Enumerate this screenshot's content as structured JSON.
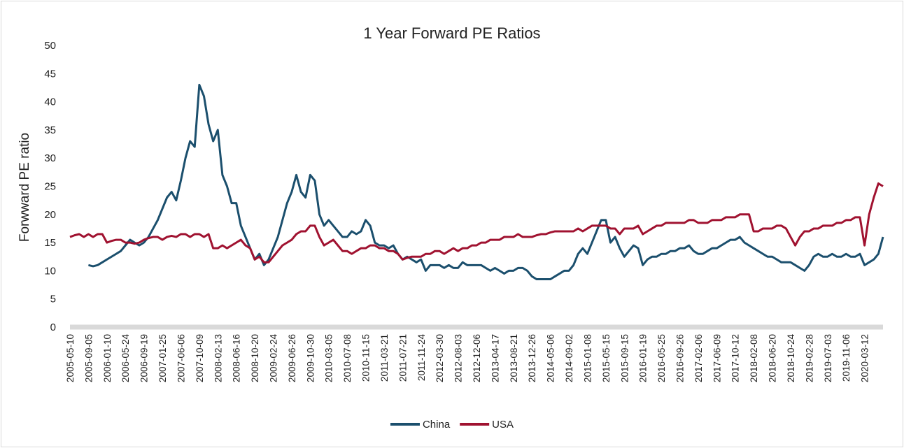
{
  "chart_data": {
    "type": "line",
    "title": "1 Year Forward PE Ratios",
    "y_label": "Forwward PE ratio",
    "categories": [
      "2005-05-10",
      null,
      null,
      null,
      "2005-09-05",
      null,
      null,
      null,
      "2006-01-10",
      null,
      null,
      null,
      "2006-05-24",
      null,
      null,
      null,
      "2006-09-19",
      null,
      null,
      null,
      "2007-01-25",
      null,
      null,
      null,
      "2007-06-06",
      null,
      null,
      null,
      "2007-10-09",
      null,
      null,
      null,
      "2008-02-13",
      null,
      null,
      null,
      "2008-06-16",
      null,
      null,
      null,
      "2008-10-20",
      null,
      null,
      null,
      "2009-02-24",
      null,
      null,
      null,
      "2009-06-26",
      null,
      null,
      null,
      "2009-10-30",
      null,
      null,
      null,
      "2010-03-05",
      null,
      null,
      null,
      "2010-07-08",
      null,
      null,
      null,
      "2010-11-15",
      null,
      null,
      null,
      "2011-03-21",
      null,
      null,
      null,
      "2011-07-21",
      null,
      null,
      null,
      "2011-11-24",
      null,
      null,
      null,
      "2012-03-30",
      null,
      null,
      null,
      "2012-08-03",
      null,
      null,
      null,
      "2012-12-06",
      null,
      null,
      null,
      "2013-04-17",
      null,
      null,
      null,
      "2013-08-21",
      null,
      null,
      null,
      "2013-12-26",
      null,
      null,
      null,
      "2014-05-06",
      null,
      null,
      null,
      "2014-09-02",
      null,
      null,
      null,
      "2015-01-08",
      null,
      null,
      null,
      "2015-05-15",
      null,
      null,
      null,
      "2015-09-15",
      null,
      null,
      null,
      "2016-01-19",
      null,
      null,
      null,
      "2016-05-25",
      null,
      null,
      null,
      "2016-09-26",
      null,
      null,
      null,
      "2017-02-06",
      null,
      null,
      null,
      "2017-06-09",
      null,
      null,
      null,
      "2017-10-12",
      null,
      null,
      null,
      "2018-02-08",
      null,
      null,
      null,
      "2018-06-20",
      null,
      null,
      null,
      "2018-10-24",
      null,
      null,
      null,
      "2019-02-28",
      null,
      null,
      null,
      "2019-07-03",
      null,
      null,
      null,
      "2019-11-06",
      null,
      null,
      null,
      "2020-03-12",
      null,
      null,
      null,
      null
    ],
    "series": [
      {
        "name": "China",
        "color": "#1b4f6d",
        "values": [
          null,
          null,
          null,
          null,
          11,
          10.8,
          11,
          11.5,
          12,
          12.5,
          13,
          13.5,
          14.5,
          15.5,
          15,
          14.5,
          15,
          16,
          17.5,
          19,
          21,
          23,
          24,
          22.5,
          26,
          30,
          33,
          32,
          43,
          41,
          36,
          33,
          35,
          27,
          25,
          22,
          22,
          18,
          16,
          14,
          12,
          13,
          11,
          12,
          14,
          16,
          19,
          22,
          24,
          27,
          24,
          23,
          27,
          26,
          20,
          18,
          19,
          18,
          17,
          16,
          16,
          17,
          16.5,
          17,
          19,
          18,
          15,
          14.5,
          14.5,
          14,
          14.5,
          13,
          12,
          12.5,
          12,
          11.5,
          12,
          10,
          11,
          11,
          11,
          10.5,
          11,
          10.5,
          10.5,
          11.5,
          11,
          11,
          11,
          11,
          10.5,
          10,
          10.5,
          10,
          9.5,
          10,
          10,
          10.5,
          10.5,
          10,
          9,
          8.5,
          8.5,
          8.5,
          8.5,
          9,
          9.5,
          10,
          10,
          11,
          13,
          14,
          13,
          15,
          17,
          19,
          19,
          15,
          16,
          14,
          12.5,
          13.5,
          14.5,
          14,
          11,
          12,
          12.5,
          12.5,
          13,
          13,
          13.5,
          13.5,
          14,
          14,
          14.5,
          13.5,
          13,
          13,
          13.5,
          14,
          14,
          14.5,
          15,
          15.5,
          15.5,
          16,
          15,
          14.5,
          14,
          13.5,
          13,
          12.5,
          12.5,
          12,
          11.5,
          11.5,
          11.5,
          11,
          10.5,
          10,
          11,
          12.5,
          13,
          12.5,
          12.5,
          13,
          12.5,
          12.5,
          13,
          12.5,
          12.5,
          13,
          11,
          11.5,
          12,
          13,
          16
        ]
      },
      {
        "name": "USA",
        "color": "#a01230",
        "values": [
          16,
          16.3,
          16.5,
          16,
          16.5,
          16,
          16.5,
          16.5,
          15,
          15.3,
          15.5,
          15.5,
          15,
          15,
          14.8,
          15,
          15.5,
          15.8,
          16,
          16,
          15.5,
          16,
          16.2,
          16,
          16.5,
          16.5,
          16,
          16.5,
          16.5,
          16,
          16.5,
          14,
          14,
          14.5,
          14,
          14.5,
          15,
          15.5,
          14.5,
          14,
          12,
          12.5,
          11.5,
          11.5,
          12.5,
          13.5,
          14.5,
          15,
          15.5,
          16.5,
          17,
          17,
          18,
          18,
          16,
          14.5,
          15,
          15.5,
          14.5,
          13.5,
          13.5,
          13,
          13.5,
          14,
          14,
          14.5,
          14.5,
          14,
          14,
          13.5,
          13.5,
          13,
          12,
          12.3,
          12.5,
          12.5,
          12.5,
          13,
          13,
          13.5,
          13.5,
          13,
          13.5,
          14,
          13.5,
          14,
          14,
          14.5,
          14.5,
          15,
          15,
          15.5,
          15.5,
          15.5,
          16,
          16,
          16,
          16.5,
          16,
          16,
          16,
          16.3,
          16.5,
          16.5,
          16.8,
          17,
          17,
          17,
          17,
          17,
          17.5,
          17,
          17.5,
          18,
          18,
          18,
          18,
          17.5,
          17.5,
          16.5,
          17.5,
          17.5,
          17.5,
          18,
          16.5,
          17,
          17.5,
          18,
          18,
          18.5,
          18.5,
          18.5,
          18.5,
          18.5,
          19,
          19,
          18.5,
          18.5,
          18.5,
          19,
          19,
          19,
          19.5,
          19.5,
          19.5,
          20,
          20,
          20,
          17,
          17,
          17.5,
          17.5,
          17.5,
          18,
          18,
          17.5,
          16,
          14.5,
          16,
          17,
          17,
          17.5,
          17.5,
          18,
          18,
          18,
          18.5,
          18.5,
          19,
          19,
          19.5,
          19.5,
          14.5,
          20,
          23,
          25.5,
          25
        ]
      }
    ],
    "ylim": [
      0,
      50
    ],
    "yticks": [
      0,
      5,
      10,
      15,
      20,
      25,
      30,
      35,
      40,
      45,
      50
    ],
    "grid": false,
    "legend": "bottom"
  }
}
